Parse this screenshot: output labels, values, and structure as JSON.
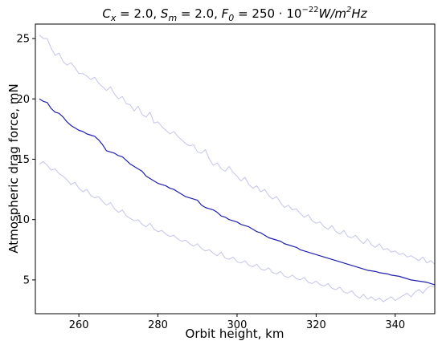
{
  "chart_data": {
    "type": "line",
    "title": "C_x = 2.0, S_m = 2.0, F_0 = 250 · 10^-22 W/m²Hz",
    "title_parts": {
      "cx_symbol": "C",
      "cx_sub": "x",
      "cx_value": " = 2.0, ",
      "sm_symbol": "S",
      "sm_sub": "m",
      "sm_value": " = 2.0, ",
      "f0_symbol": "F",
      "f0_sub": "0",
      "f0_value": " = 250 · 10",
      "f0_exp": "−22",
      "unit_main": "W/m",
      "unit_exp": "2",
      "unit_tail": "Hz"
    },
    "xlabel": "Orbit height, km",
    "ylabel": "Atmospheric drag force, mN",
    "xlim": [
      249,
      350
    ],
    "ylim": [
      2.2,
      26.2
    ],
    "x_ticks": [
      260,
      280,
      300,
      320,
      340
    ],
    "y_ticks": [
      5,
      10,
      15,
      20,
      25
    ],
    "grid": false,
    "x_start": 250,
    "x_step": 1,
    "colors": {
      "mean": "#1f1fb0",
      "bounds": "#c4c4ea"
    },
    "series": [
      {
        "role": "upper",
        "values": [
          25.3,
          25.0,
          25.0,
          24.2,
          23.6,
          23.8,
          23.1,
          22.8,
          23.0,
          22.6,
          22.1,
          22.1,
          21.9,
          21.6,
          21.8,
          21.3,
          21.0,
          20.7,
          21.0,
          20.4,
          20.0,
          20.2,
          19.6,
          19.5,
          19.0,
          19.4,
          18.7,
          18.5,
          18.9,
          18.0,
          18.1,
          17.7,
          17.4,
          17.1,
          17.3,
          16.9,
          16.6,
          16.3,
          16.1,
          16.2,
          15.6,
          15.5,
          15.8,
          15.0,
          14.5,
          14.7,
          14.2,
          14.0,
          14.4,
          13.9,
          13.6,
          13.2,
          13.5,
          12.9,
          12.6,
          12.8,
          12.3,
          12.5,
          12.0,
          11.7,
          11.9,
          11.4,
          11.0,
          11.2,
          10.8,
          10.9,
          10.5,
          10.2,
          10.4,
          9.9,
          9.7,
          9.8,
          9.4,
          9.2,
          9.5,
          9.0,
          8.8,
          9.1,
          8.6,
          8.5,
          8.7,
          8.3,
          8.0,
          8.4,
          7.9,
          7.7,
          8.0,
          7.5,
          7.6,
          7.3,
          7.4,
          7.1,
          7.2,
          6.9,
          7.0,
          6.8,
          6.6,
          6.9,
          6.4,
          6.6,
          6.3
        ]
      },
      {
        "role": "mean",
        "values": [
          20.0,
          19.8,
          19.7,
          19.2,
          18.9,
          18.8,
          18.5,
          18.1,
          17.8,
          17.6,
          17.4,
          17.3,
          17.1,
          17.0,
          16.9,
          16.6,
          16.2,
          15.7,
          15.6,
          15.5,
          15.3,
          15.2,
          14.9,
          14.6,
          14.4,
          14.2,
          14.0,
          13.6,
          13.4,
          13.2,
          13.0,
          12.9,
          12.8,
          12.6,
          12.5,
          12.3,
          12.1,
          11.9,
          11.8,
          11.7,
          11.6,
          11.2,
          11.0,
          10.9,
          10.8,
          10.6,
          10.3,
          10.2,
          10.0,
          9.9,
          9.8,
          9.6,
          9.5,
          9.4,
          9.2,
          9.0,
          8.9,
          8.7,
          8.5,
          8.4,
          8.3,
          8.2,
          8.0,
          7.9,
          7.8,
          7.7,
          7.5,
          7.4,
          7.3,
          7.2,
          7.1,
          7.0,
          6.9,
          6.8,
          6.7,
          6.6,
          6.5,
          6.4,
          6.3,
          6.2,
          6.1,
          6.0,
          5.9,
          5.8,
          5.75,
          5.7,
          5.6,
          5.55,
          5.5,
          5.4,
          5.35,
          5.3,
          5.2,
          5.1,
          5.0,
          4.95,
          4.9,
          4.85,
          4.8,
          4.7,
          4.6
        ]
      },
      {
        "role": "lower",
        "values": [
          14.6,
          14.8,
          14.5,
          14.1,
          14.2,
          13.8,
          13.6,
          13.3,
          12.9,
          13.1,
          12.6,
          12.3,
          12.5,
          12.0,
          11.8,
          11.9,
          11.5,
          11.2,
          11.4,
          10.9,
          10.6,
          10.8,
          10.3,
          10.1,
          9.9,
          10.0,
          9.6,
          9.4,
          9.7,
          9.2,
          9.0,
          9.1,
          8.8,
          8.6,
          8.7,
          8.4,
          8.2,
          8.3,
          8.0,
          7.8,
          8.0,
          7.6,
          7.4,
          7.5,
          7.2,
          7.0,
          7.3,
          6.8,
          6.7,
          6.9,
          6.5,
          6.4,
          6.6,
          6.2,
          6.1,
          6.3,
          5.9,
          5.8,
          6.0,
          5.6,
          5.5,
          5.7,
          5.3,
          5.2,
          5.4,
          5.1,
          5.0,
          5.2,
          4.8,
          4.7,
          4.9,
          4.6,
          4.5,
          4.7,
          4.3,
          4.2,
          4.4,
          4.0,
          3.9,
          4.1,
          3.7,
          3.5,
          3.8,
          3.4,
          3.6,
          3.3,
          3.5,
          3.2,
          3.4,
          3.6,
          3.3,
          3.5,
          3.7,
          3.9,
          3.6,
          4.0,
          4.2,
          3.9,
          4.3,
          4.5,
          4.4
        ]
      }
    ]
  }
}
